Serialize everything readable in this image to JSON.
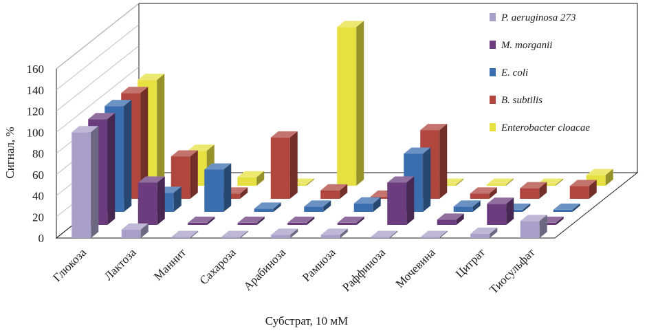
{
  "chart_data": {
    "type": "bar",
    "variant": "3d-clustered-bar",
    "title": "",
    "xlabel": "Субстрат, 10 мМ",
    "ylabel": "Сигнал, %",
    "ylim": [
      0,
      160
    ],
    "yticks": [
      0,
      20,
      40,
      60,
      80,
      100,
      120,
      140,
      160
    ],
    "grid": false,
    "legend_position": "right",
    "categories": [
      "Глюкоза",
      "Лактоза",
      "Маннит",
      "Сахароза",
      "Арабиноза",
      "Рамноза",
      "Раффиноза",
      "Мочевина",
      "Цитрат",
      "Тиосульфат"
    ],
    "series": [
      {
        "name": "P. aeruginosa 273",
        "color": "#a8a0c8",
        "values": [
          100,
          8,
          0,
          0,
          3,
          3,
          0,
          0,
          4,
          16
        ]
      },
      {
        "name": "M. morganii",
        "color": "#6b3d7e",
        "values": [
          100,
          40,
          2,
          2,
          2,
          2,
          40,
          5,
          20,
          2
        ]
      },
      {
        "name": "E. coli",
        "color": "#3a6eae",
        "values": [
          100,
          18,
          40,
          3,
          5,
          8,
          55,
          5,
          2,
          2
        ]
      },
      {
        "name": "B. subtilis",
        "color": "#b0463e",
        "values": [
          100,
          40,
          5,
          58,
          8,
          2,
          65,
          5,
          10,
          12
        ]
      },
      {
        "name": "Enterobacter cloacae",
        "color": "#e6e040",
        "values": [
          100,
          33,
          8,
          1,
          150,
          0,
          1,
          1,
          1,
          10
        ]
      }
    ]
  }
}
